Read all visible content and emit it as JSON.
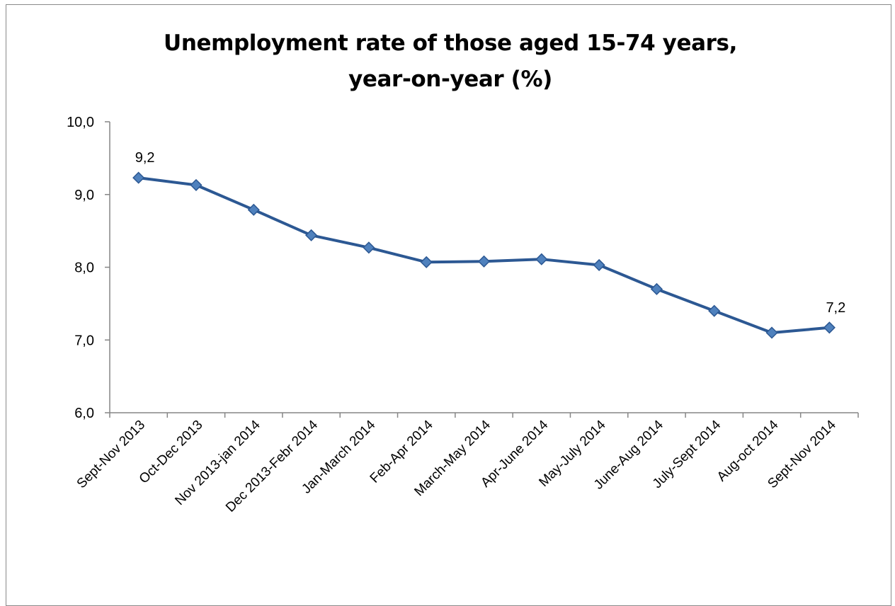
{
  "chart_data": {
    "type": "line",
    "title": "Unemployment rate of those aged 15-74 years, year-on-year (%)",
    "title_lines": [
      "Unemployment rate of those aged 15-74 years,",
      "year-on-year (%)"
    ],
    "xlabel": "",
    "ylabel": "",
    "ylim": [
      6.0,
      10.0
    ],
    "y_ticks": [
      "6,0",
      "7,0",
      "8,0",
      "9,0",
      "10,0"
    ],
    "y_tick_values": [
      6.0,
      7.0,
      8.0,
      9.0,
      10.0
    ],
    "grid": false,
    "legend": "none",
    "categories": [
      "Sept-Nov 2013",
      "Oct-Dec 2013",
      "Nov 2013-jan 2014",
      "Dec 2013-Febr 2014",
      "Jan-March 2014",
      "Feb-Apr 2014",
      "March-May 2014",
      "Apr-June 2014",
      "May-July 2014",
      "June-Aug 2014",
      "July-Sept 2014",
      "Aug-oct 2014",
      "Sept-Nov 2014"
    ],
    "series": [
      {
        "values": [
          9.23,
          9.13,
          8.79,
          8.44,
          8.27,
          8.07,
          8.08,
          8.11,
          8.03,
          7.7,
          7.4,
          7.1,
          7.17
        ],
        "color": "#2C5893",
        "marker_color": "#4F81BD"
      }
    ],
    "data_labels": [
      {
        "index": 0,
        "text": "9,2"
      },
      {
        "index": 12,
        "text": "7,2"
      }
    ]
  }
}
